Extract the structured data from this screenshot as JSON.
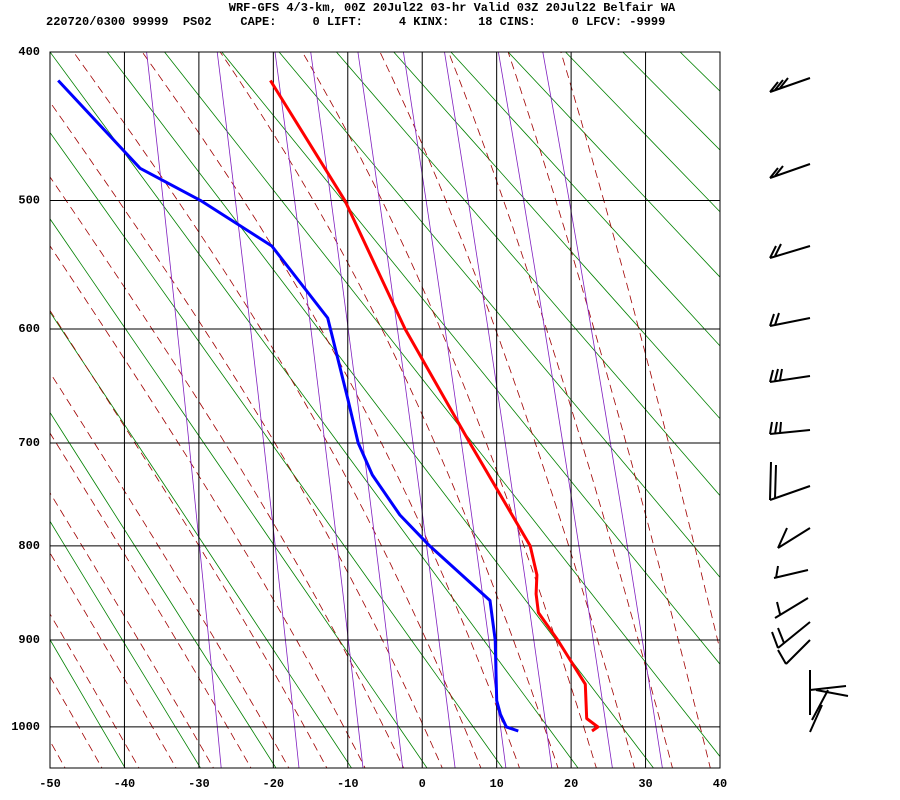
{
  "chart_data": {
    "type": "line",
    "title": "WRF-GFS 4/3-km, 00Z 20Jul22 03-hr Valid 03Z 20Jul22 Belfair WA",
    "subtitle": "220720/0300 99999  PS02    CAPE:     0 LIFT:     4 KINX:    18 CINS:     0 LFCV: -9999",
    "xlim": [
      -50,
      40
    ],
    "xticks": [
      -50,
      -40,
      -30,
      -20,
      -10,
      0,
      10,
      20,
      30,
      40
    ],
    "ylim": [
      400,
      1050
    ],
    "yticks": [
      400,
      500,
      600,
      700,
      800,
      900,
      1000
    ],
    "grid": true,
    "series": [
      {
        "color": "#ff0000",
        "y": [
          418,
          500,
          600,
          700,
          800,
          830,
          850,
          870,
          900,
          950,
          970,
          990,
          1000,
          1005
        ],
        "x": [
          -20.4,
          -10.4,
          -2.3,
          6.4,
          14.5,
          15.4,
          15.3,
          15.6,
          18.2,
          21.9,
          22.0,
          22.1,
          23.6,
          22.8
        ]
      },
      {
        "color": "#0000ff",
        "y": [
          418,
          477,
          500,
          534,
          591,
          660,
          700,
          730,
          769,
          800,
          857,
          900,
          969,
          985,
          1000,
          1005
        ],
        "x": [
          -48.9,
          -37.9,
          -29.8,
          -20.2,
          -12.7,
          -10.0,
          -8.6,
          -6.7,
          -3.0,
          1.0,
          9.1,
          9.8,
          10.0,
          10.5,
          11.3,
          12.9
        ]
      }
    ]
  }
}
